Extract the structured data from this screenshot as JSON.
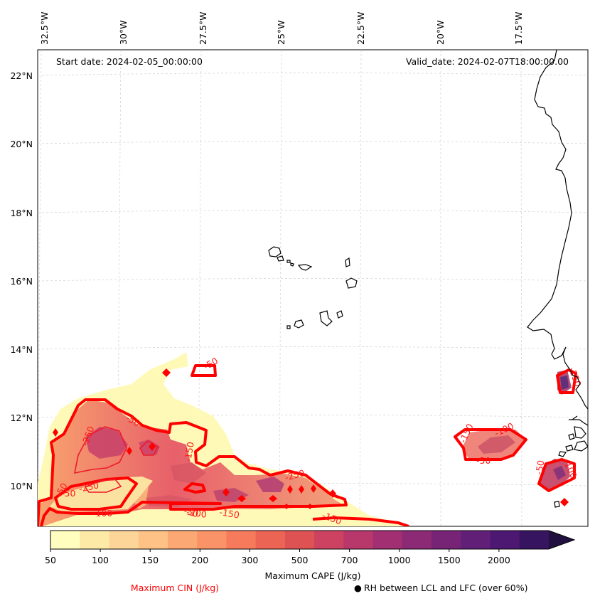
{
  "map": {
    "start_date_label": "Start date: 2024-02-05_00:00:00",
    "valid_date_label": "Valid_date: 2024-02-07T18:00:00.00",
    "lon_labels": [
      "32.5°W",
      "30°W",
      "27.5°W",
      "25°W",
      "22.5°W",
      "20°W",
      "17.5°W"
    ],
    "lat_labels": [
      "22°N",
      "20°N",
      "18°N",
      "16°N",
      "14°N",
      "12°N",
      "10°N"
    ],
    "cin_contour_labels": [
      "-50",
      "-50",
      "-250",
      "-250",
      "-150",
      "-100",
      "-100",
      "-50",
      "-150",
      "-250",
      "-150",
      "-150",
      "-100",
      "-50",
      "-50",
      "-100",
      "-150",
      "-50",
      "-50"
    ]
  },
  "colorbar": {
    "tick_labels": [
      "50",
      "100",
      "150",
      "200",
      "300",
      "500",
      "700",
      "1000",
      "1500",
      "2000"
    ],
    "label": "Maximum CAPE (J/kg)",
    "colors": [
      "#fffebf",
      "#feeaa7",
      "#fed598",
      "#fec186",
      "#fca874",
      "#fb9368",
      "#f67b5c",
      "#ec6453",
      "#de5253",
      "#cd4261",
      "#b8386b",
      "#a12f72",
      "#8c2a75",
      "#772476",
      "#621f78",
      "#4c1872",
      "#36145f",
      "#21103f"
    ]
  },
  "legend": {
    "cin_label": "Maximum CIN (J/kg)",
    "cin_color": "#ff0000",
    "rh_marker": "●",
    "rh_label": "RH between LCL and LFC (over 60%)"
  }
}
